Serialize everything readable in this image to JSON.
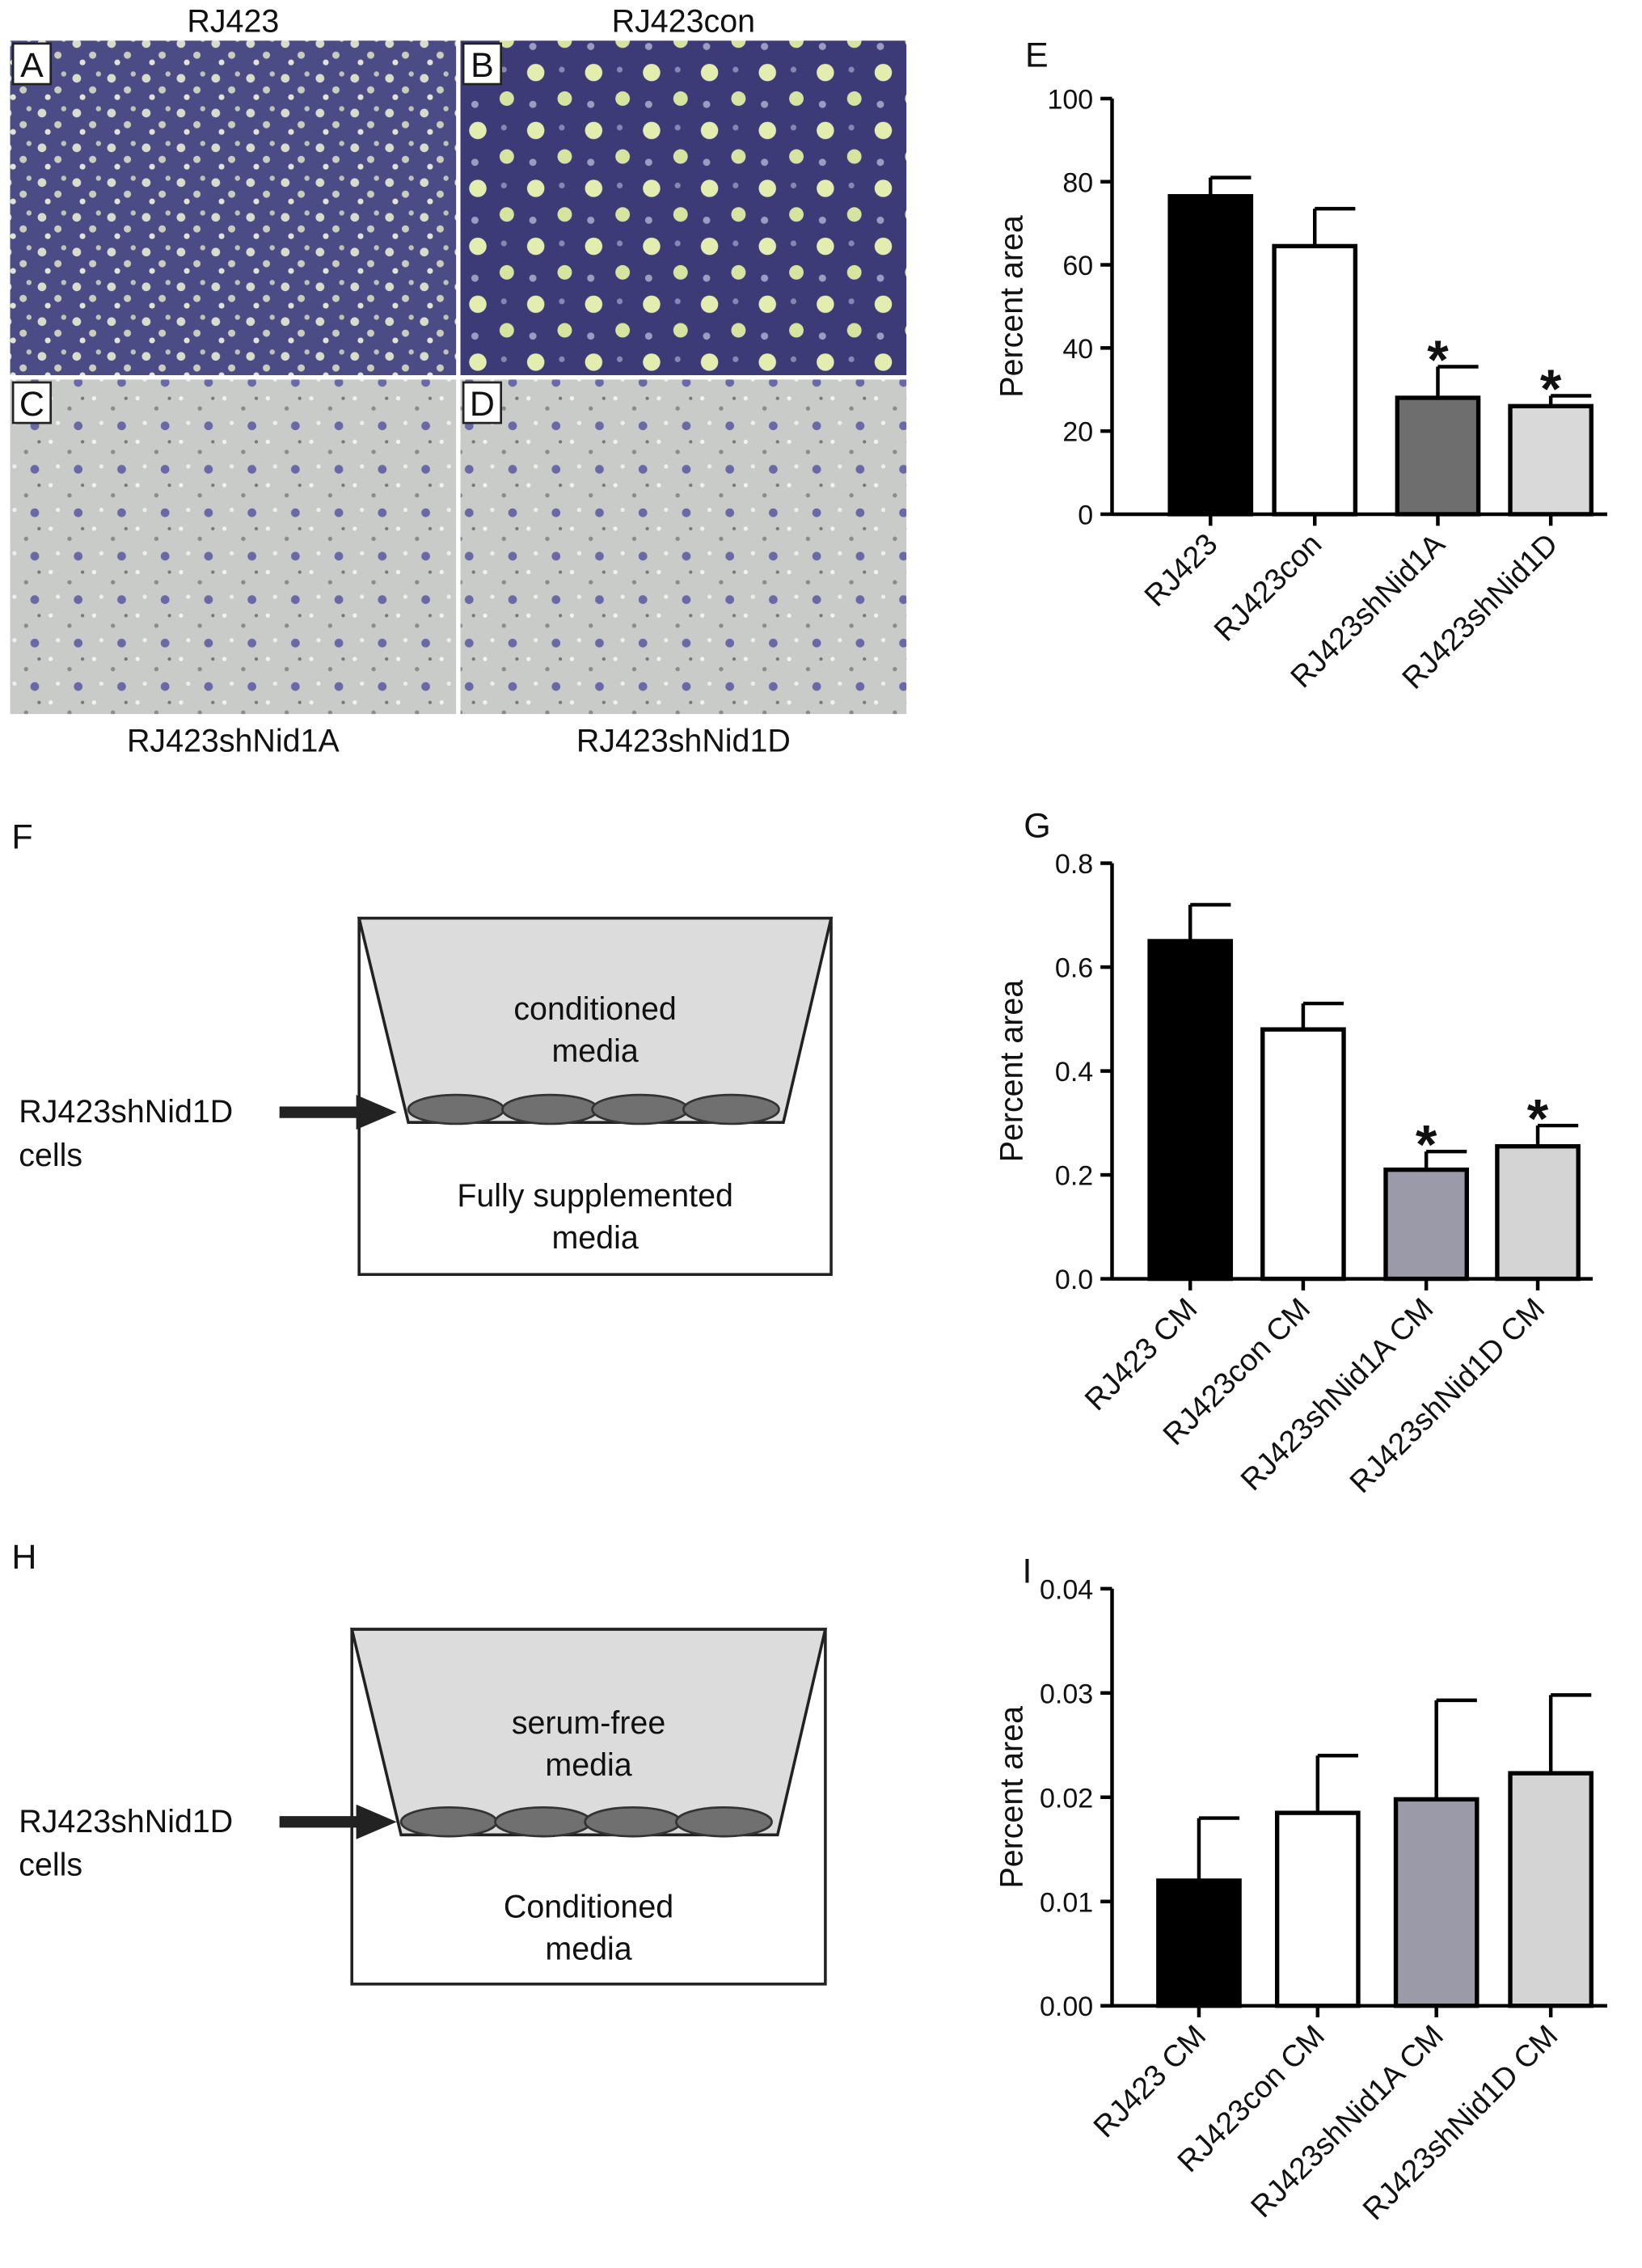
{
  "panels": [
    {
      "letter": "A",
      "label": "RJ423"
    },
    {
      "letter": "B",
      "label": "RJ423con"
    },
    {
      "letter": "C",
      "label": "RJ423shNid1A"
    },
    {
      "letter": "D",
      "label": "RJ423shNid1D"
    }
  ],
  "diagrams": [
    {
      "letter": "F",
      "inner_text": [
        "conditioned",
        "media"
      ],
      "outer_text": [
        "Fully supplemented",
        "media"
      ],
      "cell_label": [
        "RJ423shNid1D",
        "cells"
      ]
    },
    {
      "letter": "H",
      "inner_text": [
        "serum-free",
        "media"
      ],
      "outer_text": [
        "Conditioned",
        "media"
      ],
      "cell_label": [
        "RJ423shNid1D",
        "cells"
      ]
    }
  ],
  "chart_data": [
    {
      "type": "bar",
      "panel": "E",
      "ylabel": "Percent area",
      "categories": [
        "RJ423",
        "RJ423con",
        "RJ423shNid1A",
        "RJ423shNid1D"
      ],
      "values": [
        76.5,
        64.5,
        28,
        26
      ],
      "errors": [
        4.5,
        9,
        7.5,
        2.5
      ],
      "colors": [
        "#000000",
        "#ffffff",
        "#6e6e6e",
        "#d9d9d9"
      ],
      "significance": [
        null,
        null,
        "*",
        "*"
      ],
      "ylim": [
        0,
        100
      ],
      "yticks": [
        0,
        20,
        40,
        60,
        80,
        100
      ]
    },
    {
      "type": "bar",
      "panel": "G",
      "ylabel": "Percent area",
      "categories": [
        "RJ423 CM",
        "RJ423con CM",
        "RJ423shNid1A CM",
        "RJ423shNid1D CM"
      ],
      "values": [
        0.65,
        0.48,
        0.21,
        0.255
      ],
      "errors": [
        0.07,
        0.05,
        0.035,
        0.04
      ],
      "colors": [
        "#000000",
        "#ffffff",
        "#9a9aa8",
        "#d4d4d4"
      ],
      "significance": [
        null,
        null,
        "*",
        "*"
      ],
      "ylim": [
        0,
        0.8
      ],
      "yticks": [
        {
          "value": 0,
          "label": "0.0"
        },
        0.2,
        0.4,
        0.6,
        0.8
      ]
    },
    {
      "type": "bar",
      "panel": "I",
      "ylabel": "Percent area",
      "categories": [
        "RJ423 CM",
        "RJ423con CM",
        "RJ423shNid1A CM",
        "RJ423shNid1D CM"
      ],
      "values": [
        0.012,
        0.0185,
        0.0198,
        0.0223
      ],
      "errors": [
        0.006,
        0.0055,
        0.0095,
        0.0075
      ],
      "colors": [
        "#000000",
        "#ffffff",
        "#9a9aa8",
        "#d4d4d4"
      ],
      "significance": [
        null,
        null,
        null,
        null
      ],
      "ylim": [
        0,
        0.04
      ],
      "yticks": [
        {
          "value": 0,
          "label": "0.00"
        },
        {
          "value": 0.01,
          "label": "0.01"
        },
        {
          "value": 0.02,
          "label": "0.02"
        },
        {
          "value": 0.03,
          "label": "0.03"
        },
        {
          "value": 0.04,
          "label": "0.04"
        }
      ]
    }
  ]
}
